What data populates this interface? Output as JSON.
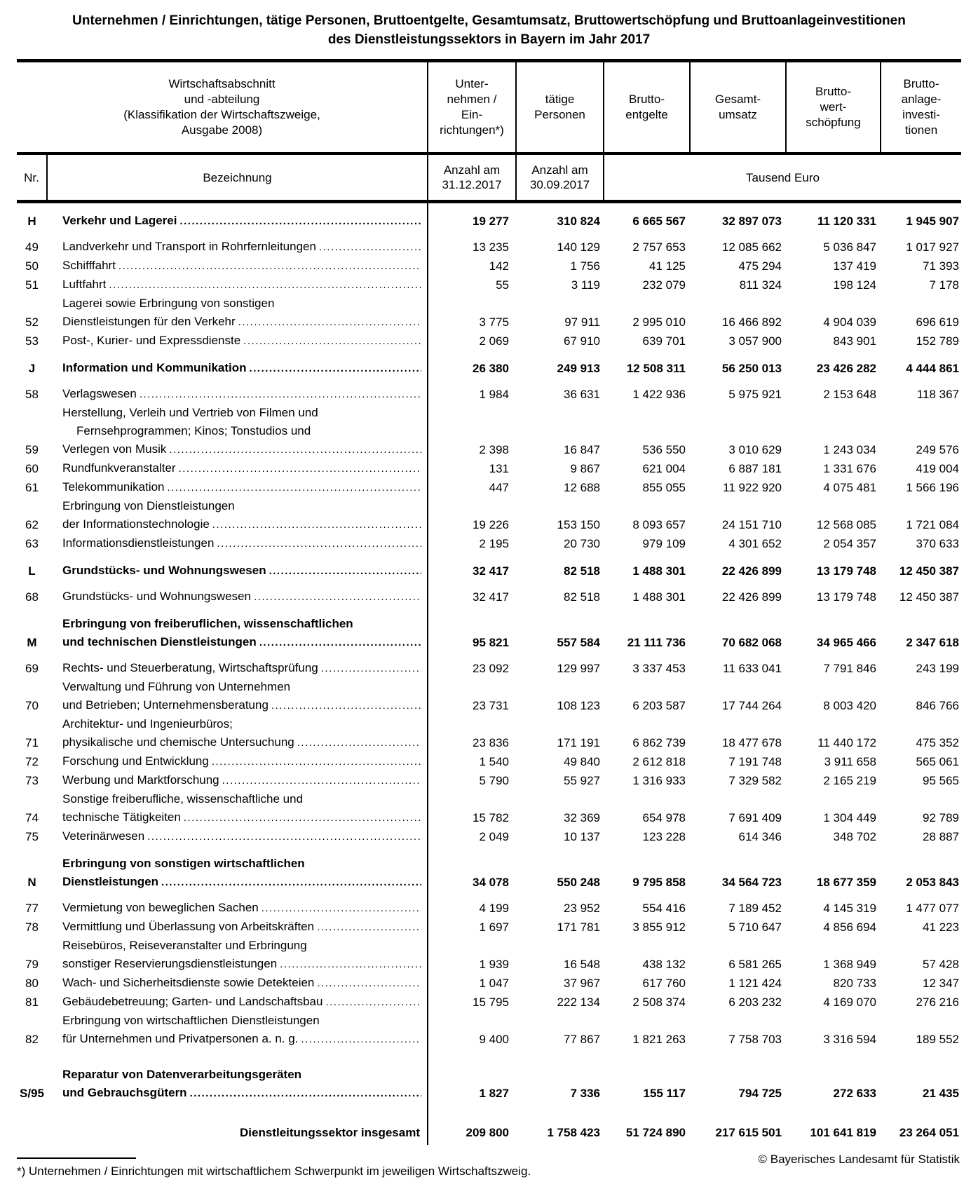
{
  "title": {
    "line1": "Unternehmen / Einrichtungen, tätige Personen, Bruttoentgelte, Gesamtumsatz, Bruttowertschöpfung und Bruttoanlageinvestitionen",
    "line2": "des Dienstleistungssektors in Bayern im Jahr 2017"
  },
  "table": {
    "header": {
      "col_main": [
        "Wirtschaftsabschnitt",
        "und -abteilung",
        "(Klassifikation der Wirtschaftszweige,",
        "Ausgabe 2008)"
      ],
      "col_unternehmen": [
        "Unter-",
        "nehmen /",
        "Ein-",
        "richtungen*)"
      ],
      "col_personen": [
        "tätige",
        "Personen"
      ],
      "col_bruttoentgelte": [
        "Brutto-",
        "entgelte"
      ],
      "col_gesamtumsatz": [
        "Gesamt-",
        "umsatz"
      ],
      "col_bruttowertschoepfung": [
        "Brutto-",
        "wert-",
        "schöpfung"
      ],
      "col_bruttoanlage": [
        "Brutto-",
        "anlage-",
        "investi-",
        "tionen"
      ],
      "nr_label": "Nr.",
      "bezeichnung_label": "Bezeichnung",
      "anzahl1": [
        "Anzahl am",
        "31.12.2017"
      ],
      "anzahl2": [
        "Anzahl am",
        "30.09.2017"
      ],
      "tausend_euro": "Tausend Euro"
    },
    "rows": [
      {
        "nr": "H",
        "section": true,
        "lines": [
          "Verkehr und Lagerei"
        ],
        "values": [
          "19 277",
          "310 824",
          "6 665 567",
          "32 897 073",
          "11 120 331",
          "1 945 907"
        ]
      },
      {
        "nr": "49",
        "lines": [
          "Landverkehr und Transport in Rohrfernleitungen"
        ],
        "values": [
          "13 235",
          "140 129",
          "2 757 653",
          "12 085 662",
          "5 036 847",
          "1 017 927"
        ]
      },
      {
        "nr": "50",
        "lines": [
          "Schifffahrt"
        ],
        "values": [
          "142",
          "1 756",
          "41 125",
          "475 294",
          "137 419",
          "71 393"
        ]
      },
      {
        "nr": "51",
        "lines": [
          "Luftfahrt"
        ],
        "values": [
          "55",
          "3 119",
          "232 079",
          "811 324",
          "198 124",
          "7 178"
        ]
      },
      {
        "nr": "52",
        "lines": [
          "Lagerei sowie Erbringung von sonstigen",
          "Dienstleistungen für den Verkehr"
        ],
        "values": [
          "3 775",
          "97 911",
          "2 995 010",
          "16 466 892",
          "4 904 039",
          "696 619"
        ]
      },
      {
        "nr": "53",
        "lines": [
          "Post-, Kurier- und Expressdienste"
        ],
        "values": [
          "2 069",
          "67 910",
          "639 701",
          "3 057 900",
          "843 901",
          "152 789"
        ]
      },
      {
        "nr": "J",
        "section": true,
        "lines": [
          "Information und Kommunikation"
        ],
        "values": [
          "26 380",
          "249 913",
          "12 508 311",
          "56 250 013",
          "23 426 282",
          "4 444 861"
        ]
      },
      {
        "nr": "58",
        "lines": [
          "Verlagswesen"
        ],
        "values": [
          "1 984",
          "36 631",
          "1 422 936",
          "5 975 921",
          "2 153 648",
          "118 367"
        ]
      },
      {
        "nr": "59",
        "lines": [
          "Herstellung, Verleih und Vertrieb von Filmen und",
          "Fernsehprogrammen; Kinos; Tonstudios und",
          "Verlegen von Musik"
        ],
        "values": [
          "2 398",
          "16 847",
          "536 550",
          "3 010 629",
          "1 243 034",
          "249 576"
        ]
      },
      {
        "nr": "60",
        "lines": [
          "Rundfunkveranstalter"
        ],
        "values": [
          "131",
          "9 867",
          "621 004",
          "6 887 181",
          "1 331 676",
          "419 004"
        ]
      },
      {
        "nr": "61",
        "lines": [
          "Telekommunikation"
        ],
        "values": [
          "447",
          "12 688",
          "855 055",
          "11 922 920",
          "4 075 481",
          "1 566 196"
        ]
      },
      {
        "nr": "62",
        "lines": [
          "Erbringung von Dienstleistungen",
          "der Informationstechnologie"
        ],
        "values": [
          "19 226",
          "153 150",
          "8 093 657",
          "24 151 710",
          "12 568 085",
          "1 721 084"
        ]
      },
      {
        "nr": "63",
        "lines": [
          "Informationsdienstleistungen"
        ],
        "values": [
          "2 195",
          "20 730",
          "979 109",
          "4 301 652",
          "2 054 357",
          "370 633"
        ]
      },
      {
        "nr": "L",
        "section": true,
        "lines": [
          "Grundstücks- und Wohnungswesen"
        ],
        "values": [
          "32 417",
          "82 518",
          "1 488 301",
          "22 426 899",
          "13 179 748",
          "12 450 387"
        ]
      },
      {
        "nr": "68",
        "lines": [
          "Grundstücks- und Wohnungswesen"
        ],
        "values": [
          "32 417",
          "82 518",
          "1 488 301",
          "22 426 899",
          "13 179 748",
          "12 450 387"
        ]
      },
      {
        "nr": "M",
        "section": true,
        "lines": [
          "Erbringung von freiberuflichen, wissenschaftlichen",
          "und technischen Dienstleistungen"
        ],
        "values": [
          "95 821",
          "557 584",
          "21 111 736",
          "70 682 068",
          "34 965 466",
          "2 347 618"
        ]
      },
      {
        "nr": "69",
        "lines": [
          "Rechts- und Steuerberatung, Wirtschaftsprüfung"
        ],
        "values": [
          "23 092",
          "129 997",
          "3 337 453",
          "11 633 041",
          "7 791 846",
          "243 199"
        ]
      },
      {
        "nr": "70",
        "lines": [
          "Verwaltung und Führung von Unternehmen",
          "und Betrieben; Unternehmensberatung"
        ],
        "values": [
          "23 731",
          "108 123",
          "6 203 587",
          "17 744 264",
          "8 003 420",
          "846 766"
        ]
      },
      {
        "nr": "71",
        "lines": [
          "Architektur- und Ingenieurbüros;",
          "physikalische und chemische Untersuchung"
        ],
        "values": [
          "23 836",
          "171 191",
          "6 862 739",
          "18 477 678",
          "11 440 172",
          "475 352"
        ]
      },
      {
        "nr": "72",
        "lines": [
          "Forschung und Entwicklung"
        ],
        "values": [
          "1 540",
          "49 840",
          "2 612 818",
          "7 191 748",
          "3 911 658",
          "565 061"
        ]
      },
      {
        "nr": "73",
        "lines": [
          "Werbung und Marktforschung"
        ],
        "values": [
          "5 790",
          "55 927",
          "1 316 933",
          "7 329 582",
          "2 165 219",
          "95 565"
        ]
      },
      {
        "nr": "74",
        "lines": [
          "Sonstige freiberufliche, wissenschaftliche und",
          "technische Tätigkeiten"
        ],
        "values": [
          "15 782",
          "32 369",
          "654 978",
          "7 691 409",
          "1 304 449",
          "92 789"
        ]
      },
      {
        "nr": "75",
        "lines": [
          "Veterinärwesen"
        ],
        "values": [
          "2 049",
          "10 137",
          "123 228",
          "614 346",
          "348 702",
          "28 887"
        ]
      },
      {
        "nr": "N",
        "section": true,
        "lines": [
          "Erbringung von sonstigen wirtschaftlichen",
          "Dienstleistungen"
        ],
        "values": [
          "34 078",
          "550 248",
          "9 795 858",
          "34 564 723",
          "18 677 359",
          "2 053 843"
        ]
      },
      {
        "nr": "77",
        "lines": [
          "Vermietung von beweglichen Sachen"
        ],
        "values": [
          "4 199",
          "23 952",
          "554 416",
          "7 189 452",
          "4 145 319",
          "1 477 077"
        ]
      },
      {
        "nr": "78",
        "lines": [
          "Vermittlung und Überlassung von Arbeitskräften"
        ],
        "values": [
          "1 697",
          "171 781",
          "3 855 912",
          "5 710 647",
          "4 856 694",
          "41 223"
        ]
      },
      {
        "nr": "79",
        "lines": [
          "Reisebüros, Reiseveranstalter und Erbringung",
          "sonstiger Reservierungsdienstleistungen"
        ],
        "values": [
          "1 939",
          "16 548",
          "438 132",
          "6 581 265",
          "1 368 949",
          "57 428"
        ]
      },
      {
        "nr": "80",
        "lines": [
          "Wach- und Sicherheitsdienste sowie Detekteien"
        ],
        "values": [
          "1 047",
          "37 967",
          "617 760",
          "1 121 424",
          "820 733",
          "12 347"
        ]
      },
      {
        "nr": "81",
        "lines": [
          "Gebäudebetreuung; Garten- und Landschaftsbau"
        ],
        "values": [
          "15 795",
          "222 134",
          "2 508 374",
          "6 203 232",
          "4 169 070",
          "276 216"
        ]
      },
      {
        "nr": "82",
        "lines": [
          "Erbringung von wirtschaftlichen Dienstleistungen",
          "für Unternehmen und Privatpersonen a. n. g."
        ],
        "values": [
          "9 400",
          "77 867",
          "1 821 263",
          "7 758 703",
          "3 316 594",
          "189 552"
        ]
      },
      {
        "nr": "S/95",
        "section": true,
        "s95": true,
        "lines": [
          "Reparatur von Datenverarbeitungsgeräten",
          "und Gebrauchsgütern"
        ],
        "values": [
          "1 827",
          "7 336",
          "155 117",
          "794 725",
          "272 633",
          "21 435"
        ]
      },
      {
        "total": true,
        "label": "Dienstleitungssektor insgesamt",
        "values": [
          "209 800",
          "1 758 423",
          "51 724 890",
          "217 615 501",
          "101 641 819",
          "23 264 051"
        ]
      }
    ]
  },
  "footnote": "*) Unternehmen / Einrichtungen mit wirtschaftlichem Schwerpunkt im jeweiligen Wirtschaftszweig.",
  "copyright": "© Bayerisches Landesamt für Statistik"
}
